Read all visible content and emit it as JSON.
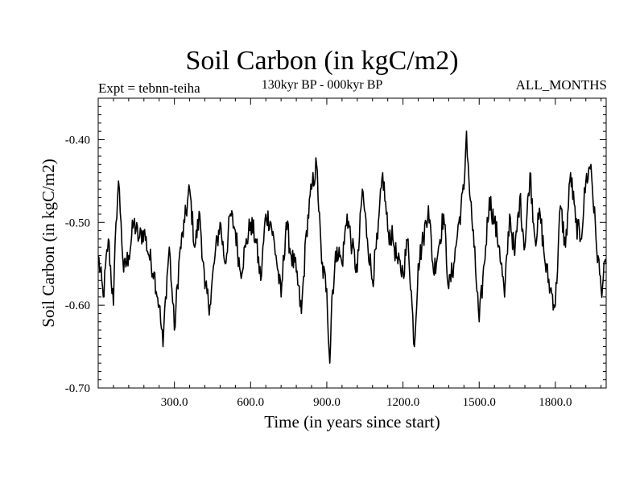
{
  "chart_data": {
    "type": "line",
    "title": "Soil Carbon (in kgC/m2)",
    "subtitle": "130kyr BP - 000kyr BP",
    "left_annotation": "Expt = tebnn-teiha",
    "right_annotation": "ALL_MONTHS",
    "xlabel": "Time (in years since start)",
    "ylabel": "Soil Carbon (in kgC/m2)",
    "xlim": [
      0,
      2000
    ],
    "ylim": [
      -0.7,
      -0.35
    ],
    "x_ticks": [
      300,
      600,
      900,
      1200,
      1500,
      1800
    ],
    "x_tick_labels": [
      "300.0",
      "600.0",
      "900.0",
      "1200.0",
      "1500.0",
      "1800.0"
    ],
    "y_ticks": [
      -0.7,
      -0.6,
      -0.5,
      -0.4
    ],
    "y_tick_labels": [
      "-0.70",
      "-0.60",
      "-0.50",
      "-0.40"
    ],
    "series": [
      {
        "name": "soil_carbon",
        "x": [
          0,
          20,
          40,
          60,
          70,
          80,
          90,
          100,
          120,
          140,
          160,
          180,
          200,
          220,
          240,
          255,
          265,
          280,
          290,
          300,
          320,
          340,
          360,
          380,
          400,
          420,
          440,
          460,
          480,
          500,
          520,
          540,
          560,
          580,
          600,
          620,
          640,
          660,
          680,
          700,
          720,
          740,
          760,
          780,
          800,
          820,
          840,
          860,
          880,
          900,
          912,
          920,
          940,
          960,
          980,
          1000,
          1020,
          1040,
          1060,
          1080,
          1100,
          1120,
          1140,
          1160,
          1180,
          1200,
          1220,
          1245,
          1260,
          1280,
          1300,
          1320,
          1340,
          1360,
          1380,
          1400,
          1420,
          1440,
          1450,
          1460,
          1480,
          1500,
          1520,
          1540,
          1560,
          1580,
          1600,
          1620,
          1640,
          1660,
          1680,
          1700,
          1720,
          1740,
          1760,
          1780,
          1800,
          1820,
          1840,
          1860,
          1880,
          1900,
          1920,
          1940,
          1960,
          1980,
          2000
        ],
        "values": [
          -0.54,
          -0.59,
          -0.52,
          -0.6,
          -0.5,
          -0.45,
          -0.5,
          -0.56,
          -0.54,
          -0.5,
          -0.52,
          -0.51,
          -0.54,
          -0.56,
          -0.6,
          -0.65,
          -0.59,
          -0.53,
          -0.58,
          -0.63,
          -0.54,
          -0.5,
          -0.46,
          -0.53,
          -0.49,
          -0.58,
          -0.6,
          -0.54,
          -0.5,
          -0.55,
          -0.49,
          -0.51,
          -0.56,
          -0.53,
          -0.5,
          -0.52,
          -0.57,
          -0.49,
          -0.5,
          -0.54,
          -0.59,
          -0.5,
          -0.54,
          -0.56,
          -0.61,
          -0.51,
          -0.46,
          -0.43,
          -0.55,
          -0.58,
          -0.67,
          -0.59,
          -0.53,
          -0.55,
          -0.49,
          -0.53,
          -0.56,
          -0.46,
          -0.52,
          -0.57,
          -0.52,
          -0.44,
          -0.51,
          -0.52,
          -0.55,
          -0.56,
          -0.52,
          -0.65,
          -0.55,
          -0.52,
          -0.48,
          -0.56,
          -0.53,
          -0.49,
          -0.58,
          -0.55,
          -0.5,
          -0.46,
          -0.39,
          -0.45,
          -0.53,
          -0.62,
          -0.55,
          -0.47,
          -0.5,
          -0.53,
          -0.59,
          -0.49,
          -0.54,
          -0.47,
          -0.53,
          -0.44,
          -0.52,
          -0.49,
          -0.55,
          -0.58,
          -0.6,
          -0.48,
          -0.53,
          -0.44,
          -0.5,
          -0.52,
          -0.45,
          -0.43,
          -0.52,
          -0.58,
          -0.55
        ]
      }
    ]
  }
}
